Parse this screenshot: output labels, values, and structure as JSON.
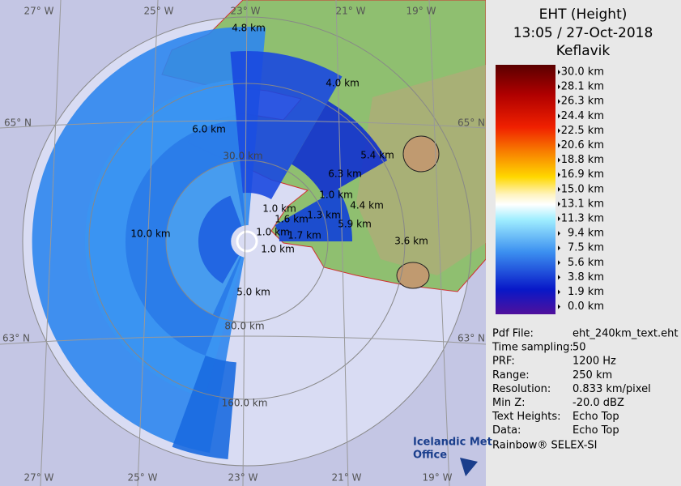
{
  "header": {
    "title": "EHT (Height)",
    "time": "13:05 / 27-Oct-2018",
    "station": "Keflavik"
  },
  "legend": {
    "labels": [
      "30.0 km",
      "28.1 km",
      "26.3 km",
      "24.4 km",
      "22.5 km",
      "20.6 km",
      "18.8 km",
      "16.9 km",
      "15.0 km",
      "13.1 km",
      "11.3 km",
      "9.4 km",
      "7.5 km",
      "5.6 km",
      "3.8 km",
      "1.9 km",
      "0.0 km"
    ]
  },
  "info": [
    {
      "key": "Pdf File:",
      "value": "eht_240km_text.eht"
    },
    {
      "key": "Time sampling:",
      "value": "50"
    },
    {
      "key": "PRF:",
      "value": "1200 Hz"
    },
    {
      "key": "Range:",
      "value": "250 km"
    },
    {
      "key": "Resolution:",
      "value": "0.833 km/pixel"
    },
    {
      "key": "Min Z:",
      "value": "-20.0 dBZ"
    },
    {
      "key": "Text Heights:",
      "value": "Echo Top"
    },
    {
      "key": "Data:",
      "value": "Echo Top"
    }
  ],
  "software": "Rainbow® SELEX-SI",
  "map": {
    "graticule": [
      "27° W",
      "25° W",
      "23° W",
      "21° W",
      "19° W",
      "27° W",
      "25° W",
      "23° W",
      "21° W",
      "19° W",
      "65° N",
      "65° N",
      "63° N",
      "63° N"
    ],
    "rings": [
      "80.0 km",
      "160.0 km",
      "30.0 km"
    ],
    "heights": [
      "4.8 km",
      "4.0 km",
      "6.0 km",
      "5.4 km",
      "6.3 km",
      "4.4 km",
      "5.9 km",
      "3.6 km",
      "10.0 km",
      "5.0 km",
      "1.0 km",
      "1.6 km",
      "1.3 km",
      "1.0 km",
      "1.0 km",
      "1.7 km",
      "1.0 km"
    ]
  },
  "logo": {
    "line1": "Icelandic Met",
    "line2": "Office"
  }
}
